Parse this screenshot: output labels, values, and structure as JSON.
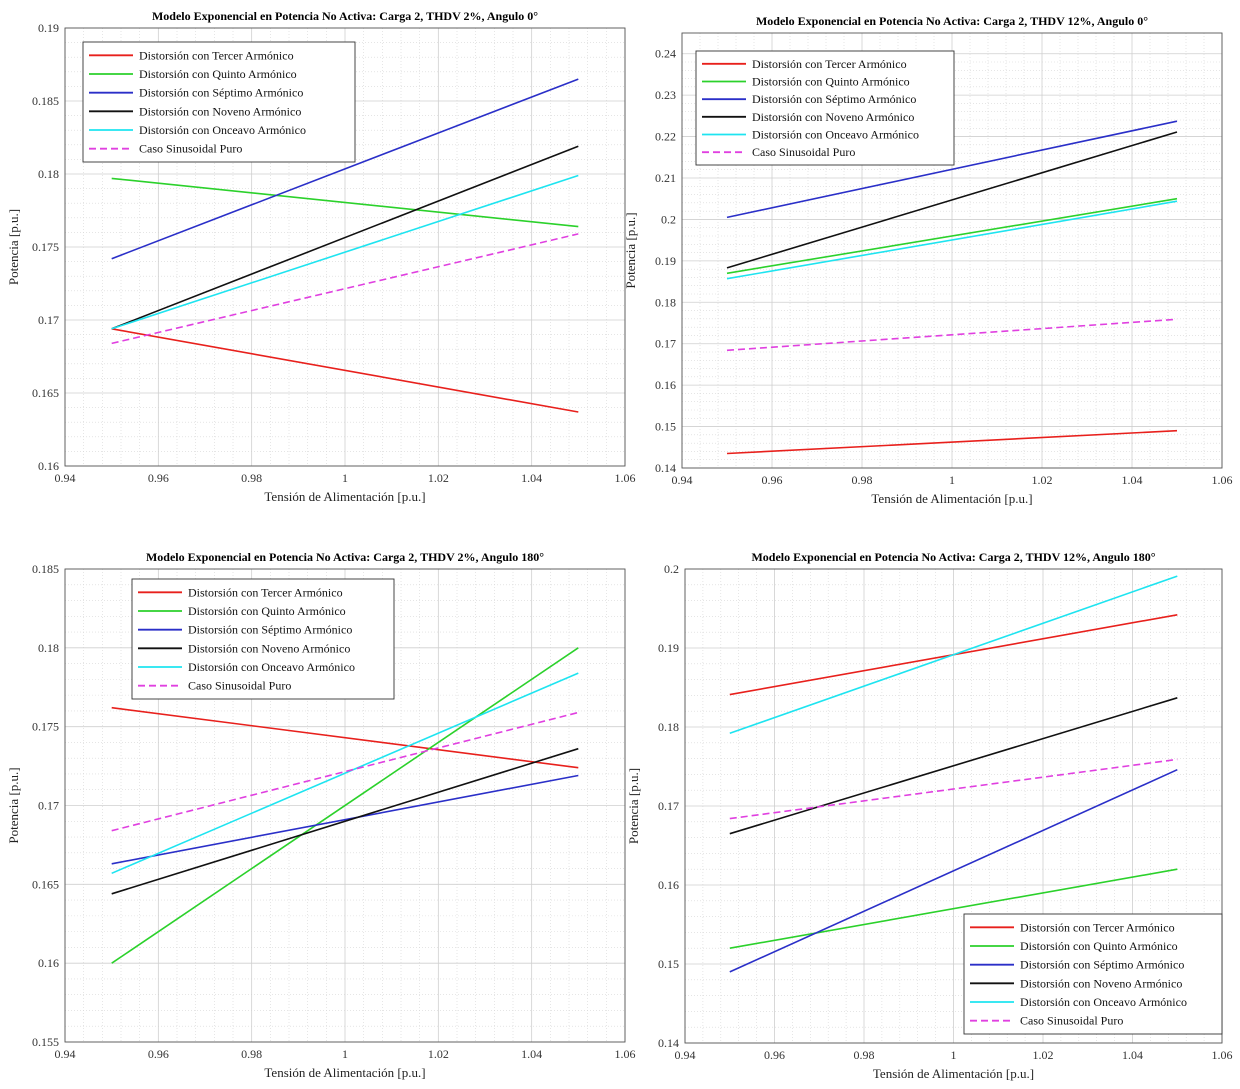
{
  "chart_data": [
    {
      "type": "line",
      "title": "Modelo Exponencial en Potencia No Activa: Carga 2, THDV 2%, Angulo 0°",
      "xlabel": "Tensión de Alimentación [p.u.]",
      "ylabel": "Potencia [p.u.]",
      "xlim": [
        0.94,
        1.06
      ],
      "ylim": [
        0.16,
        0.19
      ],
      "xticks": [
        0.94,
        0.96,
        0.98,
        1,
        1.02,
        1.04,
        1.06
      ],
      "xtick_labels": [
        "0.94",
        "0.96",
        "0.98",
        "1",
        "1.02",
        "1.04",
        "1.06"
      ],
      "yticks": [
        0.16,
        0.165,
        0.17,
        0.175,
        0.18,
        0.185,
        0.19
      ],
      "ytick_labels": [
        "0.16",
        "0.165",
        "0.17",
        "0.175",
        "0.18",
        "0.185",
        "0.19"
      ],
      "grid": true,
      "legend_position": "top-left",
      "x": [
        0.95,
        1.05
      ],
      "series": [
        {
          "name": "Distorsión con Tercer Armónico",
          "color": "#e8201c",
          "dash": false,
          "values": [
            0.1694,
            0.1637
          ]
        },
        {
          "name": "Distorsión con Quinto Armónico",
          "color": "#2bd12b",
          "dash": false,
          "values": [
            0.1797,
            0.1764
          ]
        },
        {
          "name": "Distorsión con Séptimo Armónico",
          "color": "#2a2fc8",
          "dash": false,
          "values": [
            0.1742,
            0.1865
          ]
        },
        {
          "name": "Distorsión con Noveno Armónico",
          "color": "#111111",
          "dash": false,
          "values": [
            0.1694,
            0.1819
          ]
        },
        {
          "name": "Distorsión con Onceavo Armónico",
          "color": "#1ee4f0",
          "dash": false,
          "values": [
            0.1694,
            0.1799
          ]
        },
        {
          "name": "Caso Sinusoidal Puro",
          "color": "#e040e0",
          "dash": true,
          "values": [
            0.1684,
            0.1759
          ]
        }
      ]
    },
    {
      "type": "line",
      "title": "Modelo Exponencial en Potencia No Activa: Carga 2, THDV 12%, Angulo 0°",
      "xlabel": "Tensión de Alimentación [p.u.]",
      "ylabel": "Potencia [p.u.]",
      "xlim": [
        0.94,
        1.06
      ],
      "ylim": [
        0.14,
        0.245
      ],
      "xticks": [
        0.94,
        0.96,
        0.98,
        1,
        1.02,
        1.04,
        1.06
      ],
      "xtick_labels": [
        "0.94",
        "0.96",
        "0.98",
        "1",
        "1.02",
        "1.04",
        "1.06"
      ],
      "yticks": [
        0.14,
        0.15,
        0.16,
        0.17,
        0.18,
        0.19,
        0.2,
        0.21,
        0.22,
        0.23,
        0.24
      ],
      "ytick_labels": [
        "0.14",
        "0.15",
        "0.16",
        "0.17",
        "0.18",
        "0.19",
        "0.2",
        "0.21",
        "0.22",
        "0.23",
        "0.24"
      ],
      "grid": true,
      "legend_position": "top-left",
      "x": [
        0.95,
        1.05
      ],
      "series": [
        {
          "name": "Distorsión con Tercer Armónico",
          "color": "#e8201c",
          "dash": false,
          "values": [
            0.1435,
            0.149
          ]
        },
        {
          "name": "Distorsión con Quinto Armónico",
          "color": "#2bd12b",
          "dash": false,
          "values": [
            0.187,
            0.205
          ]
        },
        {
          "name": "Distorsión con Séptimo Armónico",
          "color": "#2a2fc8",
          "dash": false,
          "values": [
            0.2005,
            0.2237
          ]
        },
        {
          "name": "Distorsión con Noveno Armónico",
          "color": "#111111",
          "dash": false,
          "values": [
            0.1883,
            0.2211
          ]
        },
        {
          "name": "Distorsión con Onceavo Armónico",
          "color": "#1ee4f0",
          "dash": false,
          "values": [
            0.1857,
            0.2044
          ]
        },
        {
          "name": "Caso Sinusoidal Puro",
          "color": "#e040e0",
          "dash": true,
          "values": [
            0.1684,
            0.1759
          ]
        }
      ]
    },
    {
      "type": "line",
      "title": "Modelo Exponencial en Potencia No Activa: Carga 2, THDV 2%, Angulo 180°",
      "xlabel": "Tensión de Alimentación [p.u.]",
      "ylabel": "Potencia [p.u.]",
      "xlim": [
        0.94,
        1.06
      ],
      "ylim": [
        0.155,
        0.185
      ],
      "xticks": [
        0.94,
        0.96,
        0.98,
        1,
        1.02,
        1.04,
        1.06
      ],
      "xtick_labels": [
        "0.94",
        "0.96",
        "0.98",
        "1",
        "1.02",
        "1.04",
        "1.06"
      ],
      "yticks": [
        0.155,
        0.16,
        0.165,
        0.17,
        0.175,
        0.18,
        0.185
      ],
      "ytick_labels": [
        "0.155",
        "0.16",
        "0.165",
        "0.17",
        "0.175",
        "0.18",
        "0.185"
      ],
      "grid": true,
      "legend_position": "top-left",
      "x": [
        0.95,
        1.05
      ],
      "series": [
        {
          "name": "Distorsión con Tercer Armónico",
          "color": "#e8201c",
          "dash": false,
          "values": [
            0.1762,
            0.1724
          ]
        },
        {
          "name": "Distorsión con Quinto Armónico",
          "color": "#2bd12b",
          "dash": false,
          "values": [
            0.16,
            0.18
          ]
        },
        {
          "name": "Distorsión con Séptimo Armónico",
          "color": "#2a2fc8",
          "dash": false,
          "values": [
            0.1663,
            0.1719
          ]
        },
        {
          "name": "Distorsión con Noveno Armónico",
          "color": "#111111",
          "dash": false,
          "values": [
            0.1644,
            0.1736
          ]
        },
        {
          "name": "Distorsión con Onceavo Armónico",
          "color": "#1ee4f0",
          "dash": false,
          "values": [
            0.1657,
            0.1784
          ]
        },
        {
          "name": "Caso Sinusoidal Puro",
          "color": "#e040e0",
          "dash": true,
          "values": [
            0.1684,
            0.1759
          ]
        }
      ]
    },
    {
      "type": "line",
      "title": "Modelo Exponencial en Potencia No Activa: Carga 2, THDV 12%, Angulo 180°",
      "xlabel": "Tensión de Alimentación [p.u.]",
      "ylabel": "Potencia [p.u.]",
      "xlim": [
        0.94,
        1.06
      ],
      "ylim": [
        0.14,
        0.2
      ],
      "xticks": [
        0.94,
        0.96,
        0.98,
        1,
        1.02,
        1.04,
        1.06
      ],
      "xtick_labels": [
        "0.94",
        "0.96",
        "0.98",
        "1",
        "1.02",
        "1.04",
        "1.06"
      ],
      "yticks": [
        0.14,
        0.15,
        0.16,
        0.17,
        0.18,
        0.19,
        0.2
      ],
      "ytick_labels": [
        "0.14",
        "0.15",
        "0.16",
        "0.17",
        "0.18",
        "0.19",
        "0.2"
      ],
      "grid": true,
      "legend_position": "bottom-right",
      "x": [
        0.95,
        1.05
      ],
      "series": [
        {
          "name": "Distorsión con Tercer Armónico",
          "color": "#e8201c",
          "dash": false,
          "values": [
            0.1841,
            0.1942
          ]
        },
        {
          "name": "Distorsión con Quinto Armónico",
          "color": "#2bd12b",
          "dash": false,
          "values": [
            0.152,
            0.162
          ]
        },
        {
          "name": "Distorsión con Séptimo Armónico",
          "color": "#2a2fc8",
          "dash": false,
          "values": [
            0.149,
            0.1746
          ]
        },
        {
          "name": "Distorsión con Noveno Armónico",
          "color": "#111111",
          "dash": false,
          "values": [
            0.1665,
            0.1837
          ]
        },
        {
          "name": "Distorsión con Onceavo Armónico",
          "color": "#1ee4f0",
          "dash": false,
          "values": [
            0.1792,
            0.1991
          ]
        },
        {
          "name": "Caso Sinusoidal Puro",
          "color": "#e040e0",
          "dash": true,
          "values": [
            0.1684,
            0.1759
          ]
        }
      ]
    }
  ]
}
